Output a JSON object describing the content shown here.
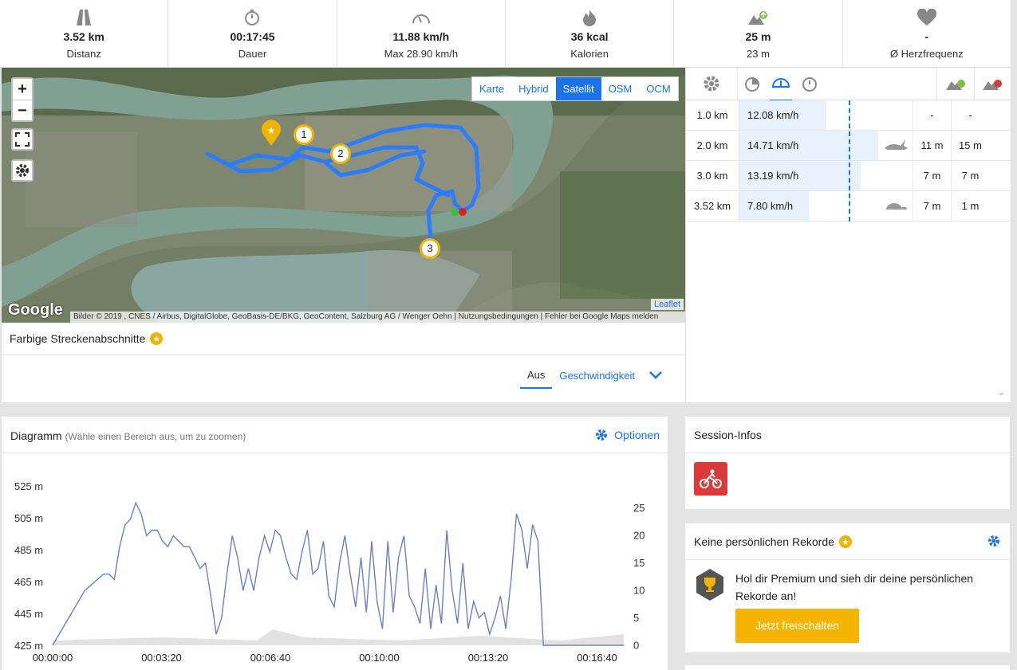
{
  "stats": [
    {
      "icon": "road-icon",
      "value": "3.52 km",
      "sub": "Distanz"
    },
    {
      "icon": "stopwatch-icon",
      "value": "00:17:45",
      "sub": "Dauer"
    },
    {
      "icon": "speedometer-icon",
      "value": "11.88 km/h",
      "sub": "Max 28.90 km/h"
    },
    {
      "icon": "flame-icon",
      "value": "36 kcal",
      "sub": "Kalorien"
    },
    {
      "icon": "elevation-up-icon",
      "value": "25 m",
      "sub": "23 m"
    },
    {
      "icon": "heart-icon",
      "value": "-",
      "sub": "Ø Herzfrequenz"
    }
  ],
  "map": {
    "zoom_in": "+",
    "zoom_out": "−",
    "layers": [
      "Karte",
      "Hybrid",
      "Satellit",
      "OSM",
      "OCM"
    ],
    "active_layer": "Satellit",
    "google": "Google",
    "attribution": "Bilder © 2019 , CNES / Airbus, DigitalGlobe, GeoBasis-DE/BKG, GeoContent, Salzburg AG / Wenger Oehn | Nutzungsbedingungen | Fehler bei Google Maps melden",
    "leaflet": "Leaflet",
    "markers": [
      "1",
      "2",
      "3"
    ]
  },
  "segments": {
    "title": "Farbige Streckenabschnitte",
    "star": "★",
    "tab_off": "Aus",
    "tab_speed": "Geschwindigkeit"
  },
  "laps": {
    "rows": [
      {
        "dist": "1.0 km",
        "speed": "12.08 km/h",
        "fill": 0.5,
        "up": "-",
        "down": "-",
        "animal": ""
      },
      {
        "dist": "2.0 km",
        "speed": "14.71 km/h",
        "fill": 0.8,
        "up": "11 m",
        "down": "15 m",
        "animal": "rabbit-icon"
      },
      {
        "dist": "3.0 km",
        "speed": "13.19 km/h",
        "fill": 0.7,
        "up": "7 m",
        "down": "7 m",
        "animal": ""
      },
      {
        "dist": "3.52 km",
        "speed": "7.80 km/h",
        "fill": 0.4,
        "up": "7 m",
        "down": "1 m",
        "animal": "turtle-icon"
      }
    ]
  },
  "chart": {
    "title": "Diagramm",
    "hint": "(Wähle einen Bereich aus, um zu zoomen)",
    "options": "Optionen"
  },
  "chart_data": {
    "type": "line",
    "x_ticks": [
      "00:00:00",
      "00:03:20",
      "00:06:40",
      "00:10:00",
      "00:13:20",
      "00:16:40"
    ],
    "y_left_ticks": [
      "525 m",
      "505 m",
      "485 m",
      "465 m",
      "445 m",
      "425 m"
    ],
    "y_right_ticks": [
      "25",
      "20",
      "15",
      "10",
      "5",
      "0"
    ],
    "ylim_right": [
      0,
      25
    ],
    "series": [
      {
        "x": [
          0,
          60,
          95,
          105,
          115,
          125,
          135,
          145,
          155,
          165,
          175,
          185,
          195,
          205,
          215,
          225,
          235,
          245,
          255,
          265,
          275,
          285,
          295,
          305,
          315,
          325,
          335,
          345,
          355,
          365,
          375,
          385,
          395,
          405,
          415,
          425,
          435,
          445,
          455,
          465,
          475,
          485,
          495,
          505,
          515,
          525,
          535,
          545,
          555,
          565,
          575,
          585,
          595,
          605,
          615,
          625,
          635,
          645,
          655,
          665,
          675,
          685,
          695,
          705,
          715,
          725,
          735,
          745,
          755,
          765,
          775,
          785,
          795,
          805,
          815,
          825,
          835,
          845,
          855,
          865,
          875,
          885,
          895,
          905,
          915,
          925,
          935,
          945,
          955,
          965,
          975,
          985,
          995,
          1005,
          1015,
          1025,
          1035,
          1045,
          1055,
          1065
        ],
        "values": [
          0,
          10,
          13,
          13,
          12,
          18,
          22,
          23,
          26,
          24,
          20,
          21,
          21,
          19,
          18,
          20,
          19,
          18,
          18,
          16,
          14,
          15,
          9,
          2,
          5,
          13,
          20,
          16,
          10,
          14,
          10,
          16,
          20,
          17,
          21,
          20,
          16,
          13,
          12,
          17,
          21,
          13,
          14,
          19,
          9,
          7,
          15,
          20,
          13,
          7,
          16,
          6,
          19,
          8,
          3,
          19,
          6,
          16,
          20,
          9,
          7,
          4,
          14,
          3,
          11,
          4,
          21,
          10,
          4,
          15,
          3,
          8,
          5,
          6,
          2,
          5,
          9,
          3,
          12,
          24,
          21,
          14,
          22,
          19,
          0,
          0,
          0,
          0,
          0,
          0,
          0,
          0,
          0,
          0,
          0,
          0,
          0,
          0,
          0,
          0
        ]
      }
    ]
  },
  "session": {
    "title": "Session-Infos",
    "sport_icon": "cycling-icon"
  },
  "records": {
    "title": "Keine persönlichen Rekorde",
    "star": "★",
    "text": "Hol dir Premium und sieh dir deine persönlichen Rekorde an!",
    "button": "Jetzt freischalten"
  }
}
